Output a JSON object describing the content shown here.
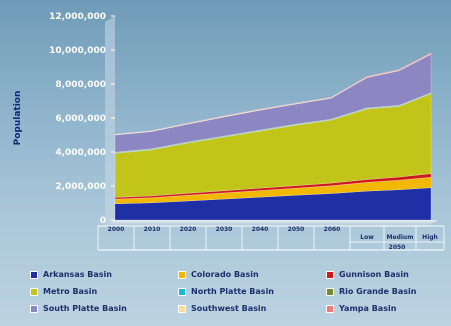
{
  "chart_data": {
    "type": "area",
    "stacked": true,
    "ylabel": "Population",
    "ylim": [
      0,
      12000000
    ],
    "y_ticks": [
      "0",
      "2,000,000",
      "4,000,000",
      "6,000,000",
      "8,000,000",
      "10,000,000",
      "12,000,000"
    ],
    "categories": [
      "2000",
      "2010",
      "2020",
      "2030",
      "2040",
      "2050",
      "2060",
      "Low",
      "Medium",
      "High"
    ],
    "category_group_label": "2050",
    "grid": false,
    "legend_position": "bottom",
    "series": [
      {
        "name": "Arkansas Basin",
        "color": "#1f2fa6",
        "values": [
          950000,
          1010000,
          1120000,
          1230000,
          1340000,
          1450000,
          1560000,
          1700000,
          1780000,
          1900000
        ]
      },
      {
        "name": "Colorado Basin",
        "color": "#f2b800",
        "values": [
          280000,
          300000,
          330000,
          360000,
          390000,
          420000,
          450000,
          510000,
          560000,
          620000
        ]
      },
      {
        "name": "Gunnison Basin",
        "color": "#cc1a1a",
        "values": [
          100000,
          110000,
          120000,
          130000,
          140000,
          150000,
          160000,
          175000,
          190000,
          210000
        ]
      },
      {
        "name": "Metro Basin",
        "color": "#c2c41a",
        "values": [
          2600000,
          2700000,
          2950000,
          3150000,
          3350000,
          3550000,
          3700000,
          4150000,
          4150000,
          4700000
        ]
      },
      {
        "name": "North Platte Basin",
        "color": "#19b8d0",
        "values": [
          30000,
          30000,
          30000,
          30000,
          30000,
          30000,
          30000,
          30000,
          30000,
          30000
        ]
      },
      {
        "name": "Rio Grande Basin",
        "color": "#7a8a2a",
        "values": [
          30000,
          30000,
          30000,
          30000,
          30000,
          30000,
          30000,
          30000,
          30000,
          30000
        ]
      },
      {
        "name": "South Platte Basin",
        "color": "#8c86c2",
        "values": [
          1010000,
          1020000,
          1050000,
          1120000,
          1170000,
          1180000,
          1230000,
          1780000,
          2040000,
          2260000
        ]
      },
      {
        "name": "Southwest Basin",
        "color": "#f4dc9a",
        "values": [
          30000,
          30000,
          30000,
          30000,
          30000,
          30000,
          30000,
          30000,
          30000,
          30000
        ]
      },
      {
        "name": "Yampa Basin",
        "color": "#f07a7a",
        "values": [
          20000,
          20000,
          30000,
          30000,
          30000,
          30000,
          30000,
          40000,
          40000,
          50000
        ]
      }
    ]
  }
}
